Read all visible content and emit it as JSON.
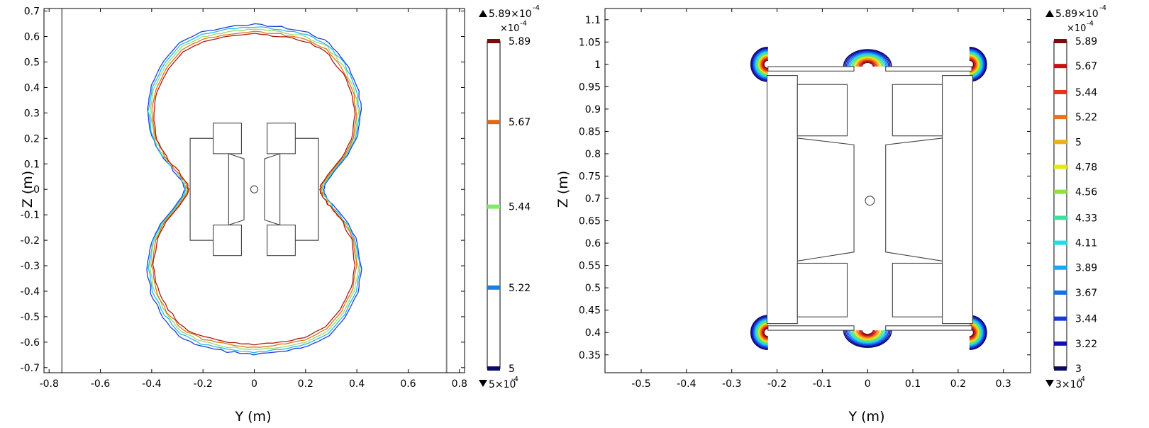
{
  "chart_data": [
    {
      "type": "contour",
      "xlabel": "Y (m)",
      "ylabel": "Z (m)",
      "xlim": [
        -0.82,
        0.82
      ],
      "ylim": [
        -0.72,
        0.71
      ],
      "x_ticks": [
        "-0.8",
        "-0.6",
        "-0.4",
        "-0.2",
        "0",
        "0.2",
        "0.4",
        "0.6",
        "0.8"
      ],
      "x_tick_values": [
        -0.8,
        -0.6,
        -0.4,
        -0.2,
        0,
        0.2,
        0.4,
        0.6,
        0.8
      ],
      "y_ticks": [
        "0.7",
        "0.6",
        "0.5",
        "0.4",
        "0.3",
        "0.2",
        "0.1",
        "0",
        "-0.1",
        "-0.2",
        "-0.3",
        "-0.4",
        "-0.5",
        "-0.6",
        "-0.7"
      ],
      "y_tick_values": [
        0.7,
        0.6,
        0.5,
        0.4,
        0.3,
        0.2,
        0.1,
        0,
        -0.1,
        -0.2,
        -0.3,
        -0.4,
        -0.5,
        -0.6,
        -0.7
      ],
      "colorbar": {
        "max_label": "5.89×10",
        "max_exp": "-4",
        "min_label": "5×10",
        "min_exp": "-4",
        "scale_label": "×10",
        "scale_exp": "-4",
        "levels": [
          {
            "label": "5.89",
            "value": 5.89,
            "color": "#7a0c0c"
          },
          {
            "label": "5.67",
            "value": 5.67,
            "color": "#e06a10"
          },
          {
            "label": "5.44",
            "value": 5.44,
            "color": "#86e86a"
          },
          {
            "label": "5.22",
            "value": 5.22,
            "color": "#1e7ee0"
          },
          {
            "label": "5",
            "value": 5.0,
            "color": "#0a0a6a"
          }
        ],
        "vmin": 5.0,
        "vmax": 5.89
      },
      "series": [
        {
          "color": "#1a3fd8",
          "scale": 1.045
        },
        {
          "color": "#26b8e8",
          "scale": 1.03
        },
        {
          "color": "#96dc6e",
          "scale": 1.015
        },
        {
          "color": "#e07418",
          "scale": 1.0
        },
        {
          "color": "#a81c10",
          "scale": 0.985
        }
      ],
      "outline": [
        [
          0.0,
          0.62
        ],
        [
          0.1,
          0.61
        ],
        [
          0.2,
          0.59
        ],
        [
          0.28,
          0.55
        ],
        [
          0.34,
          0.48
        ],
        [
          0.385,
          0.39
        ],
        [
          0.4,
          0.3
        ],
        [
          0.385,
          0.2
        ],
        [
          0.35,
          0.13
        ],
        [
          0.3,
          0.07
        ],
        [
          0.265,
          0.02
        ],
        [
          0.26,
          0.0
        ],
        [
          0.265,
          -0.02
        ],
        [
          0.3,
          -0.07
        ],
        [
          0.35,
          -0.13
        ],
        [
          0.385,
          -0.2
        ],
        [
          0.4,
          -0.3
        ],
        [
          0.385,
          -0.39
        ],
        [
          0.34,
          -0.48
        ],
        [
          0.28,
          -0.55
        ],
        [
          0.2,
          -0.59
        ],
        [
          0.1,
          -0.61
        ],
        [
          0.0,
          -0.62
        ],
        [
          -0.1,
          -0.61
        ],
        [
          -0.2,
          -0.59
        ],
        [
          -0.28,
          -0.55
        ],
        [
          -0.34,
          -0.48
        ],
        [
          -0.385,
          -0.39
        ],
        [
          -0.4,
          -0.3
        ],
        [
          -0.385,
          -0.2
        ],
        [
          -0.35,
          -0.13
        ],
        [
          -0.3,
          -0.07
        ],
        [
          -0.265,
          -0.02
        ],
        [
          -0.26,
          0.0
        ],
        [
          -0.265,
          0.02
        ],
        [
          -0.3,
          0.07
        ],
        [
          -0.35,
          0.13
        ],
        [
          -0.385,
          0.2
        ],
        [
          -0.4,
          0.3
        ],
        [
          -0.385,
          0.39
        ],
        [
          -0.34,
          0.48
        ],
        [
          -0.28,
          0.55
        ],
        [
          -0.2,
          0.59
        ],
        [
          -0.1,
          0.61
        ]
      ],
      "boundary_lines": [
        -0.75,
        0.75
      ],
      "geometry": {
        "rects": [
          [
            -0.25,
            -0.2,
            -0.1,
            0.2
          ],
          [
            0.1,
            -0.2,
            0.25,
            0.2
          ],
          [
            -0.16,
            0.14,
            -0.05,
            0.26
          ],
          [
            0.05,
            0.14,
            0.16,
            0.26
          ],
          [
            -0.16,
            -0.26,
            -0.05,
            -0.14
          ],
          [
            0.05,
            -0.26,
            0.16,
            -0.14
          ]
        ],
        "polys": [
          [
            [
              -0.25,
              0.2
            ],
            [
              -0.1,
              0.2
            ],
            [
              -0.1,
              0.14
            ],
            [
              -0.04,
              0.12
            ],
            [
              -0.04,
              -0.12
            ],
            [
              -0.1,
              -0.14
            ],
            [
              -0.1,
              -0.2
            ],
            [
              -0.25,
              -0.2
            ]
          ],
          [
            [
              0.25,
              0.2
            ],
            [
              0.1,
              0.2
            ],
            [
              0.1,
              0.14
            ],
            [
              0.04,
              0.12
            ],
            [
              0.04,
              -0.12
            ],
            [
              0.1,
              -0.14
            ],
            [
              0.1,
              -0.2
            ],
            [
              0.25,
              -0.2
            ]
          ]
        ],
        "circle": {
          "cx": 0.0,
          "cy": 0.0,
          "r": 0.014
        }
      },
      "grid": false
    },
    {
      "type": "contour",
      "xlabel": "Y (m)",
      "ylabel": "Z (m)",
      "xlim": [
        -0.58,
        0.36
      ],
      "ylim": [
        0.31,
        1.125
      ],
      "x_ticks": [
        "-0.5",
        "-0.4",
        "-0.3",
        "-0.2",
        "-0.1",
        "0",
        "0.1",
        "0.2",
        "0.3"
      ],
      "x_tick_values": [
        -0.5,
        -0.4,
        -0.3,
        -0.2,
        -0.1,
        0,
        0.1,
        0.2,
        0.3
      ],
      "y_ticks": [
        "1.1",
        "1.05",
        "1",
        "0.95",
        "0.9",
        "0.85",
        "0.8",
        "0.75",
        "0.7",
        "0.65",
        "0.6",
        "0.55",
        "0.5",
        "0.45",
        "0.4",
        "0.35"
      ],
      "y_tick_values": [
        1.1,
        1.05,
        1.0,
        0.95,
        0.9,
        0.85,
        0.8,
        0.75,
        0.7,
        0.65,
        0.6,
        0.55,
        0.5,
        0.45,
        0.4,
        0.35
      ],
      "colorbar": {
        "max_label": "5.89×10",
        "max_exp": "-4",
        "min_label": "3×10",
        "min_exp": "-4",
        "scale_label": "×10",
        "scale_exp": "-4",
        "levels": [
          {
            "label": "5.89",
            "value": 5.89,
            "color": "#7a0c0c"
          },
          {
            "label": "5.67",
            "value": 5.67,
            "color": "#c81010"
          },
          {
            "label": "5.44",
            "value": 5.44,
            "color": "#e83218"
          },
          {
            "label": "5.22",
            "value": 5.22,
            "color": "#f07018"
          },
          {
            "label": "5",
            "value": 5.0,
            "color": "#f0b010"
          },
          {
            "label": "4.78",
            "value": 4.78,
            "color": "#e8e818"
          },
          {
            "label": "4.56",
            "value": 4.56,
            "color": "#90e040"
          },
          {
            "label": "4.33",
            "value": 4.33,
            "color": "#40e0a0"
          },
          {
            "label": "4.11",
            "value": 4.11,
            "color": "#18e0e8"
          },
          {
            "label": "3.89",
            "value": 3.89,
            "color": "#18a8f0"
          },
          {
            "label": "3.67",
            "value": 3.67,
            "color": "#1870e8"
          },
          {
            "label": "3.44",
            "value": 3.44,
            "color": "#1838d8"
          },
          {
            "label": "3.22",
            "value": 3.22,
            "color": "#1010b0"
          },
          {
            "label": "3",
            "value": 3.0,
            "color": "#0a0a60"
          }
        ],
        "vmin": 3.0,
        "vmax": 5.89
      },
      "hotspots": [
        {
          "cx": -0.22,
          "cy": 1.0,
          "dir": -1,
          "side": "left"
        },
        {
          "cx": 0.225,
          "cy": 1.0,
          "dir": -1,
          "side": "right"
        },
        {
          "cx": -0.22,
          "cy": 0.4,
          "dir": 1,
          "side": "left"
        },
        {
          "cx": 0.225,
          "cy": 0.4,
          "dir": 1,
          "side": "right"
        },
        {
          "cx": 0.0,
          "cy": 0.995,
          "dir": -1,
          "side": "top"
        },
        {
          "cx": 0.0,
          "cy": 0.405,
          "dir": 1,
          "side": "bottom"
        }
      ],
      "geometry": {
        "rects": [
          [
            -0.222,
            0.42,
            -0.155,
            0.975
          ],
          [
            0.165,
            0.42,
            0.232,
            0.975
          ],
          [
            -0.155,
            0.84,
            -0.045,
            0.955
          ],
          [
            0.055,
            0.84,
            0.165,
            0.955
          ],
          [
            -0.155,
            0.435,
            -0.045,
            0.555
          ],
          [
            0.055,
            0.435,
            0.165,
            0.555
          ],
          [
            -0.22,
            0.985,
            -0.03,
            0.995
          ],
          [
            0.04,
            0.985,
            0.23,
            0.995
          ],
          [
            -0.22,
            0.405,
            -0.03,
            0.415
          ],
          [
            0.04,
            0.405,
            0.23,
            0.415
          ]
        ],
        "polys": [
          [
            [
              -0.155,
              0.835
            ],
            [
              -0.03,
              0.82
            ],
            [
              -0.03,
              0.58
            ],
            [
              -0.155,
              0.56
            ]
          ],
          [
            [
              0.165,
              0.835
            ],
            [
              0.04,
              0.82
            ],
            [
              0.04,
              0.58
            ],
            [
              0.165,
              0.56
            ]
          ]
        ],
        "circle": {
          "cx": 0.005,
          "cy": 0.695,
          "r": 0.01
        }
      },
      "grid": false
    }
  ]
}
